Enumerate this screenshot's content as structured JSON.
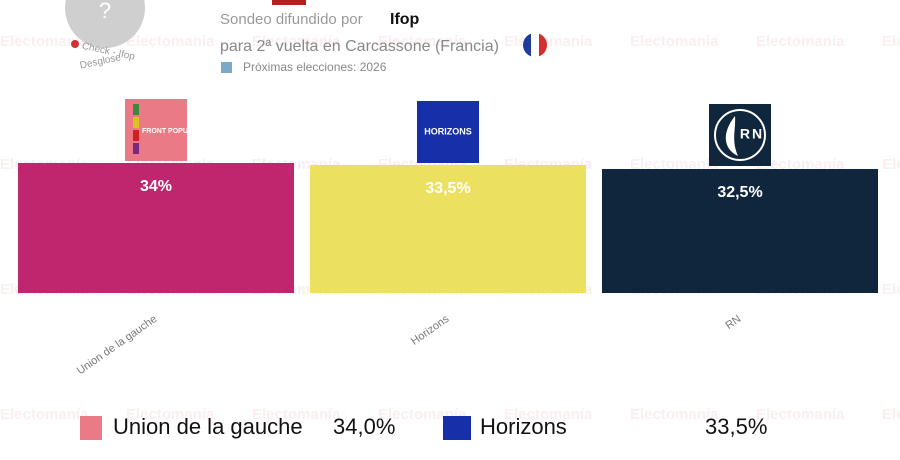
{
  "chart_data": {
    "type": "bar",
    "header": {
      "source_prefix": "Sondeo difundido por",
      "source": "Ifop",
      "subtitle": "para 2ª vuelta en Carcassone (Francia)",
      "next_elections": "Próximas elecciones: 2026",
      "badge": "?",
      "check_label": "Check - Ifop",
      "breakdown_label": "Desglose"
    },
    "watermark": "Electomanía",
    "categories": [
      "Union de la gauche",
      "Horizons",
      "RN"
    ],
    "values": [
      34,
      33.5,
      32.5
    ],
    "value_labels": [
      "34%",
      "33,5%",
      "32,5%"
    ],
    "colors": [
      "#c0266e",
      "#ece060",
      "#10263d"
    ],
    "logos": [
      "FRONT POPULAIRE",
      "HORIZONS",
      "RN"
    ],
    "ylim": [
      1.5,
      36
    ],
    "legend": [
      {
        "name": "Union de la gauche",
        "value_label": "34,0%"
      },
      {
        "name": "Horizons",
        "value_label": "33,5%"
      }
    ]
  }
}
